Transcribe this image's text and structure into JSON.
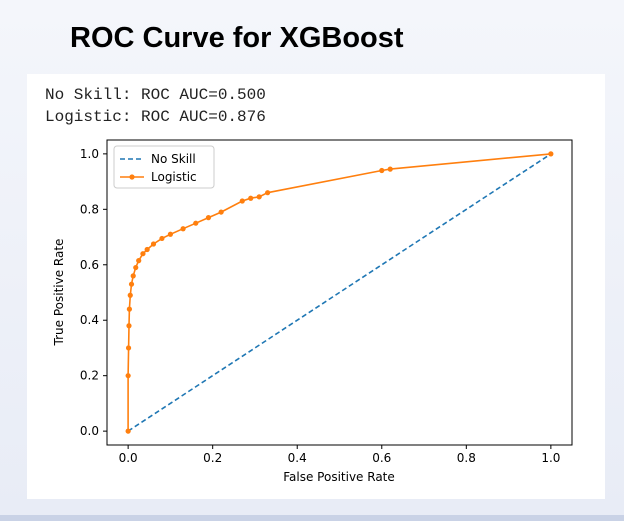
{
  "slide": {
    "title": "ROC Curve for XGBoost"
  },
  "output": {
    "line1": "No Skill: ROC AUC=0.500",
    "line2": "Logistic: ROC AUC=0.876"
  },
  "chart_data": {
    "type": "line",
    "title": "",
    "xlabel": "False Positive Rate",
    "ylabel": "True Positive Rate",
    "xlim": [
      -0.05,
      1.05
    ],
    "ylim": [
      -0.05,
      1.05
    ],
    "xticks": [
      0.0,
      0.2,
      0.4,
      0.6,
      0.8,
      1.0
    ],
    "yticks": [
      0.0,
      0.2,
      0.4,
      0.6,
      0.8,
      1.0
    ],
    "tick_labels": [
      "0.0",
      "0.2",
      "0.4",
      "0.6",
      "0.8",
      "1.0"
    ],
    "grid": false,
    "legend": "top-left",
    "series": [
      {
        "name": "No Skill",
        "style": "dashed",
        "color": "#1f77b4",
        "x": [
          0.0,
          1.0
        ],
        "y": [
          0.0,
          1.0
        ]
      },
      {
        "name": "Logistic",
        "style": "solid-with-point-markers",
        "color": "#ff7f0e",
        "x": [
          0.0,
          0.0,
          0.001,
          0.002,
          0.003,
          0.005,
          0.008,
          0.012,
          0.018,
          0.025,
          0.035,
          0.045,
          0.06,
          0.08,
          0.1,
          0.13,
          0.16,
          0.19,
          0.22,
          0.27,
          0.29,
          0.31,
          0.33,
          0.6,
          0.62,
          1.0
        ],
        "y": [
          0.0,
          0.2,
          0.3,
          0.38,
          0.44,
          0.49,
          0.53,
          0.56,
          0.59,
          0.615,
          0.64,
          0.655,
          0.675,
          0.695,
          0.71,
          0.73,
          0.75,
          0.77,
          0.79,
          0.83,
          0.84,
          0.845,
          0.86,
          0.94,
          0.945,
          1.0
        ]
      }
    ]
  }
}
